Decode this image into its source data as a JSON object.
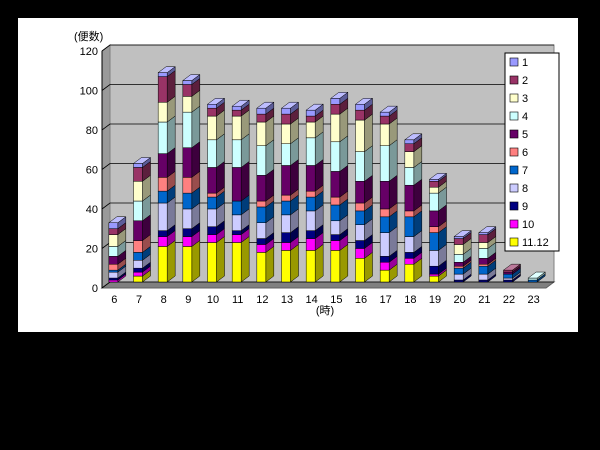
{
  "chart_data": {
    "type": "bar",
    "stacked": true,
    "three_d": true,
    "ylabel": "(便数)",
    "xlabel": "(時)",
    "ylim": [
      0,
      120
    ],
    "yticks": [
      0,
      20,
      40,
      60,
      80,
      100,
      120
    ],
    "grid": true,
    "legend_position": "right",
    "categories": [
      "6",
      "7",
      "8",
      "9",
      "10",
      "11",
      "12",
      "13",
      "14",
      "15",
      "16",
      "17",
      "18",
      "19",
      "20",
      "21",
      "22",
      "23"
    ],
    "series": [
      {
        "name": "11.12",
        "color": "#ffff00",
        "values": [
          0,
          3,
          18,
          18,
          20,
          20,
          15,
          16,
          16,
          16,
          12,
          6,
          9,
          3,
          0,
          0,
          0,
          0
        ]
      },
      {
        "name": "10",
        "color": "#ff00ff",
        "values": [
          1,
          2,
          5,
          5,
          4,
          4,
          4,
          4,
          6,
          5,
          5,
          4,
          3,
          1,
          0,
          0,
          0,
          0
        ]
      },
      {
        "name": "9",
        "color": "#000080",
        "values": [
          1,
          2,
          3,
          4,
          4,
          2,
          3,
          5,
          4,
          3,
          4,
          3,
          3,
          4,
          1,
          1,
          1,
          0
        ]
      },
      {
        "name": "8",
        "color": "#ccccff",
        "values": [
          3,
          4,
          14,
          10,
          9,
          8,
          8,
          9,
          10,
          7,
          8,
          12,
          8,
          8,
          3,
          3,
          1,
          0
        ]
      },
      {
        "name": "7",
        "color": "#0066cc",
        "values": [
          1,
          4,
          6,
          8,
          6,
          7,
          8,
          7,
          7,
          8,
          7,
          8,
          10,
          9,
          3,
          4,
          2,
          1
        ]
      },
      {
        "name": "6",
        "color": "#ff8080",
        "values": [
          3,
          6,
          7,
          8,
          2,
          0,
          3,
          3,
          3,
          4,
          4,
          4,
          3,
          3,
          1,
          1,
          0,
          0
        ]
      },
      {
        "name": "5",
        "color": "#660066",
        "values": [
          4,
          10,
          12,
          15,
          13,
          17,
          13,
          15,
          13,
          13,
          11,
          14,
          13,
          8,
          2,
          3,
          1,
          0
        ]
      },
      {
        "name": "4",
        "color": "#ccffff",
        "values": [
          5,
          10,
          16,
          18,
          14,
          14,
          15,
          11,
          14,
          15,
          15,
          18,
          9,
          9,
          4,
          5,
          0,
          1
        ]
      },
      {
        "name": "3",
        "color": "#ffffcc",
        "values": [
          6,
          10,
          10,
          8,
          12,
          12,
          12,
          10,
          8,
          14,
          16,
          11,
          8,
          3,
          5,
          3,
          0,
          0
        ]
      },
      {
        "name": "2",
        "color": "#993366",
        "values": [
          3,
          7,
          13,
          6,
          4,
          3,
          4,
          5,
          3,
          5,
          5,
          4,
          4,
          3,
          3,
          4,
          1,
          0
        ]
      },
      {
        "name": "1",
        "color": "#9999ff",
        "values": [
          3,
          2,
          2,
          2,
          2,
          2,
          3,
          3,
          3,
          3,
          3,
          2,
          2,
          1,
          1,
          1,
          0,
          0
        ]
      }
    ]
  }
}
